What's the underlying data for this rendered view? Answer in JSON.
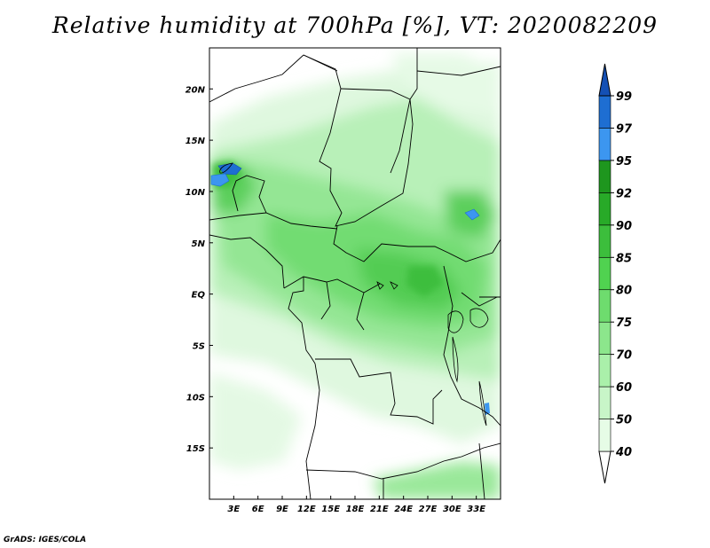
{
  "title": "Relative humidity at 700hPa [%], VT: 2020082209",
  "credit": "GrADS: IGES/COLA",
  "map": {
    "lon_range": [
      0,
      36
    ],
    "lat_range": [
      -20,
      24
    ],
    "x_ticks": [
      {
        "lon": 3,
        "label": "3E"
      },
      {
        "lon": 6,
        "label": "6E"
      },
      {
        "lon": 9,
        "label": "9E"
      },
      {
        "lon": 12,
        "label": "12E"
      },
      {
        "lon": 15,
        "label": "15E"
      },
      {
        "lon": 18,
        "label": "18E"
      },
      {
        "lon": 21,
        "label": "21E"
      },
      {
        "lon": 24,
        "label": "24E"
      },
      {
        "lon": 27,
        "label": "27E"
      },
      {
        "lon": 30,
        "label": "30E"
      },
      {
        "lon": 33,
        "label": "33E"
      }
    ],
    "y_ticks": [
      {
        "lat": 20,
        "label": "20N"
      },
      {
        "lat": 15,
        "label": "15N"
      },
      {
        "lat": 10,
        "label": "10N"
      },
      {
        "lat": 5,
        "label": "5N"
      },
      {
        "lat": 0,
        "label": "EQ"
      },
      {
        "lat": -5,
        "label": "5S"
      },
      {
        "lat": -10,
        "label": "10S"
      },
      {
        "lat": -15,
        "label": "15S"
      }
    ]
  },
  "colorbar": {
    "levels": [
      "40",
      "50",
      "60",
      "70",
      "75",
      "80",
      "85",
      "90",
      "92",
      "95",
      "97",
      "99"
    ],
    "colors": [
      "#ffffff",
      "#e6fce6",
      "#c8f5c8",
      "#aaf0aa",
      "#8ce68c",
      "#6edc6e",
      "#50d250",
      "#3cbe3c",
      "#28aa28",
      "#1e961e",
      "#3c96f0",
      "#1e6ed2",
      "#1450b4"
    ]
  }
}
